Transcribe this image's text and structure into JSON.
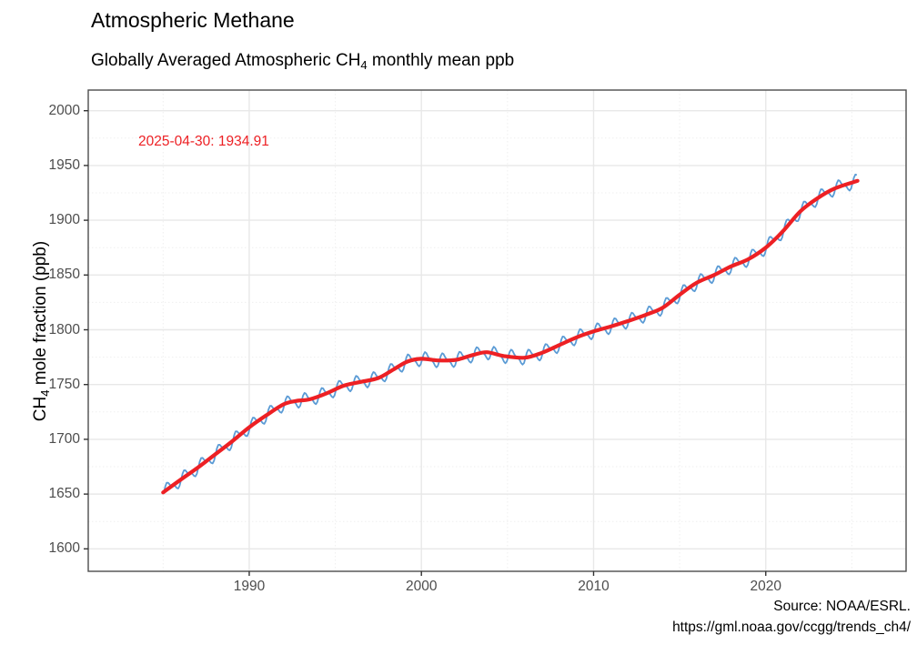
{
  "header": {
    "title": "Atmospheric Methane",
    "subtitle_prefix": "Globally Averaged Atmospheric CH",
    "subtitle_sub": "4",
    "subtitle_suffix": " monthly mean ppb"
  },
  "annotation": {
    "text": "2025-04-30: 1934.91",
    "color": "#ed2024"
  },
  "y_axis_title": {
    "prefix": "CH",
    "sub": "4",
    "suffix": " mole fraction (ppb)"
  },
  "caption": {
    "line1": "Source: NOAA/ESRL.",
    "line2": "https://gml.noaa.gov/ccgg/trends_ch4/"
  },
  "chart_data": {
    "type": "line",
    "title": "Atmospheric Methane",
    "subtitle": "Globally Averaged Atmospheric CH4 monthly mean ppb",
    "xlabel": "",
    "ylabel": "CH4 mole fraction (ppb)",
    "x_domain": [
      1980.65,
      2028.15
    ],
    "y_domain": [
      1579.5,
      2018.85
    ],
    "x_major_ticks": [
      1990,
      2000,
      2010,
      2020
    ],
    "x_minor_ticks": [
      1985,
      1995,
      2005,
      2015,
      2025
    ],
    "y_major_ticks": [
      1600,
      1650,
      1700,
      1750,
      1800,
      1850,
      1900,
      1950,
      2000
    ],
    "y_minor_ticks": [
      1625,
      1675,
      1725,
      1775,
      1825,
      1875,
      1925,
      1975
    ],
    "grid": "major solid + minor dotted",
    "legend": "none",
    "colors": {
      "monthly_line": "#5b9bd5",
      "trend_line": "#ed2024",
      "grid_major": "#e8e8e8",
      "grid_minor": "#efefef",
      "panel_border": "#4d4d4d",
      "tick_mark": "#333333",
      "tick_label": "#4d4d4d"
    },
    "series": [
      {
        "name": "CH4 monthly mean (ppb)",
        "color": "#5b9bd5",
        "derivation": "trend + seasonal cycle",
        "start_year": 1985.04,
        "end_year": 2025.29,
        "points_per_year": 12,
        "seasonal": {
          "a1": 5.3,
          "p1": 0.3,
          "a2": 2.2,
          "p2": 0.05
        },
        "last_value": 1934.91,
        "last_date": "2025-04-30"
      },
      {
        "name": "smoothed trend",
        "color": "#ed2024",
        "points": [
          [
            1985.0,
            1651.5
          ],
          [
            1986,
            1663
          ],
          [
            1987,
            1674
          ],
          [
            1988,
            1686
          ],
          [
            1989,
            1698
          ],
          [
            1990,
            1711
          ],
          [
            1991,
            1722
          ],
          [
            1992,
            1732
          ],
          [
            1992.7,
            1735
          ],
          [
            1993.5,
            1736.5
          ],
          [
            1994.5,
            1742
          ],
          [
            1995.5,
            1749
          ],
          [
            1996.5,
            1752.5
          ],
          [
            1997.5,
            1756
          ],
          [
            1998.4,
            1764
          ],
          [
            1999.2,
            1771
          ],
          [
            2000,
            1773.5
          ],
          [
            2001,
            1772
          ],
          [
            2002,
            1772.5
          ],
          [
            2003,
            1777
          ],
          [
            2003.8,
            1779.5
          ],
          [
            2004.8,
            1776
          ],
          [
            2006,
            1774.5
          ],
          [
            2007,
            1779
          ],
          [
            2008,
            1786
          ],
          [
            2009,
            1793
          ],
          [
            2010,
            1798.5
          ],
          [
            2011,
            1803
          ],
          [
            2012,
            1808
          ],
          [
            2013,
            1813.5
          ],
          [
            2014,
            1820
          ],
          [
            2015,
            1832
          ],
          [
            2016,
            1843
          ],
          [
            2017,
            1850
          ],
          [
            2018,
            1858
          ],
          [
            2019,
            1864.5
          ],
          [
            2020,
            1875
          ],
          [
            2021,
            1890
          ],
          [
            2022,
            1908
          ],
          [
            2023,
            1920
          ],
          [
            2024,
            1929
          ],
          [
            2025.33,
            1936
          ]
        ]
      }
    ]
  }
}
